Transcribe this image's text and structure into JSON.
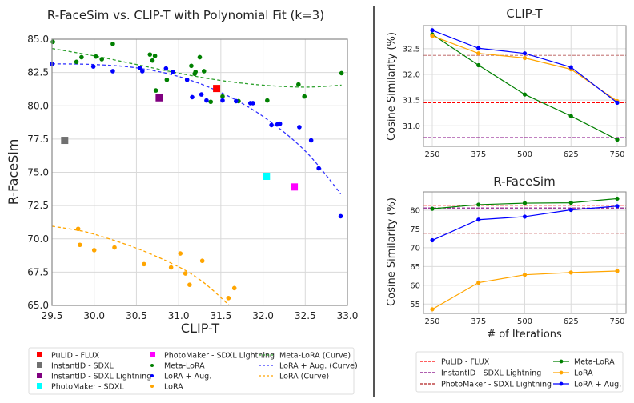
{
  "chart_data": [
    {
      "type": "scatter",
      "title": "R-FaceSim vs. CLIP-T with Polynomial Fit (k=3)",
      "xlabel": "CLIP-T",
      "ylabel": "R-FaceSim",
      "xlim": [
        29.5,
        33.0
      ],
      "ylim": [
        65.0,
        85.0
      ],
      "xticks": [
        "29.5",
        "30.0",
        "30.5",
        "31.0",
        "31.5",
        "32.0",
        "32.5",
        "33.0"
      ],
      "yticks": [
        "65.0",
        "67.5",
        "70.0",
        "72.5",
        "75.0",
        "77.5",
        "80.0",
        "82.5",
        "85.0"
      ],
      "grid": true,
      "legend_placement": "bottom",
      "baselines": [
        {
          "name": "PuLID - FLUX",
          "color": "#ff0000",
          "x": 31.45,
          "y": 81.3
        },
        {
          "name": "InstantID - SDXL",
          "color": "#707070",
          "x": 29.65,
          "y": 77.4
        },
        {
          "name": "InstantID - SDXL Lightning",
          "color": "#800080",
          "x": 30.77,
          "y": 80.6
        },
        {
          "name": "PhotoMaker - SDXL",
          "color": "#00ffff",
          "x": 32.04,
          "y": 74.7
        },
        {
          "name": "PhotoMaker - SDXL Lightning",
          "color": "#ff00ff",
          "x": 32.37,
          "y": 73.9
        }
      ],
      "series": [
        {
          "name": "Meta-LoRA",
          "color": "#008000",
          "points": [
            [
              29.51,
              84.8
            ],
            [
              29.79,
              83.3
            ],
            [
              29.85,
              83.65
            ],
            [
              30.02,
              83.7
            ],
            [
              30.09,
              83.5
            ],
            [
              30.22,
              84.65
            ],
            [
              30.66,
              83.85
            ],
            [
              30.69,
              83.4
            ],
            [
              30.72,
              83.75
            ],
            [
              30.73,
              81.15
            ],
            [
              30.86,
              81.95
            ],
            [
              31.15,
              83.0
            ],
            [
              31.2,
              82.55
            ],
            [
              31.25,
              83.65
            ],
            [
              31.38,
              80.3
            ],
            [
              31.52,
              80.7
            ],
            [
              31.71,
              80.35
            ],
            [
              32.05,
              80.4
            ],
            [
              32.42,
              81.6
            ],
            [
              32.49,
              80.7
            ],
            [
              32.93,
              82.45
            ],
            [
              31.3,
              82.6
            ],
            [
              31.19,
              82.4
            ]
          ]
        },
        {
          "name": "LoRA + Aug.",
          "color": "#0000ff",
          "points": [
            [
              29.5,
              83.15
            ],
            [
              29.99,
              82.95
            ],
            [
              30.22,
              82.6
            ],
            [
              30.54,
              82.85
            ],
            [
              30.57,
              82.6
            ],
            [
              30.85,
              82.8
            ],
            [
              30.93,
              82.55
            ],
            [
              31.1,
              81.95
            ],
            [
              31.16,
              80.65
            ],
            [
              31.27,
              80.85
            ],
            [
              31.33,
              80.4
            ],
            [
              31.45,
              81.35
            ],
            [
              31.68,
              80.35
            ],
            [
              31.85,
              80.2
            ],
            [
              31.88,
              80.2
            ],
            [
              32.1,
              78.55
            ],
            [
              32.17,
              78.6
            ],
            [
              32.2,
              78.65
            ],
            [
              32.43,
              78.4
            ],
            [
              32.57,
              77.4
            ],
            [
              32.66,
              75.3
            ],
            [
              32.92,
              71.7
            ],
            [
              31.52,
              80.4
            ]
          ]
        },
        {
          "name": "LoRA",
          "color": "#ffa500",
          "points": [
            [
              29.81,
              70.75
            ],
            [
              29.83,
              69.55
            ],
            [
              30.0,
              69.15
            ],
            [
              30.24,
              69.35
            ],
            [
              30.59,
              68.1
            ],
            [
              30.91,
              67.85
            ],
            [
              31.02,
              68.9
            ],
            [
              31.08,
              67.4
            ],
            [
              31.13,
              66.55
            ],
            [
              31.28,
              68.35
            ],
            [
              31.59,
              65.55
            ],
            [
              31.66,
              66.3
            ]
          ]
        }
      ],
      "curves": [
        {
          "name": "Meta-LoRA (Curve)",
          "color": "#2ca02c",
          "x_range": [
            29.5,
            32.93
          ],
          "samples": [
            [
              29.5,
              84.3
            ],
            [
              30.0,
              83.75
            ],
            [
              30.5,
              83.1
            ],
            [
              31.0,
              82.45
            ],
            [
              31.5,
              81.9
            ],
            [
              32.0,
              81.55
            ],
            [
              32.5,
              81.4
            ],
            [
              32.93,
              81.55
            ]
          ]
        },
        {
          "name": "LoRA + Aug. (Curve)",
          "color": "#3333ff",
          "x_range": [
            29.5,
            32.92
          ],
          "samples": [
            [
              29.5,
              83.15
            ],
            [
              30.0,
              83.1
            ],
            [
              30.5,
              82.85
            ],
            [
              31.0,
              82.2
            ],
            [
              31.5,
              81.0
            ],
            [
              32.0,
              79.2
            ],
            [
              32.5,
              76.6
            ],
            [
              32.92,
              73.4
            ]
          ]
        },
        {
          "name": "LoRA (Curve)",
          "color": "#ffa500",
          "x_range": [
            29.5,
            31.6
          ],
          "samples": [
            [
              29.5,
              70.95
            ],
            [
              29.8,
              70.65
            ],
            [
              30.0,
              70.35
            ],
            [
              30.5,
              69.3
            ],
            [
              31.0,
              67.9
            ],
            [
              31.3,
              66.7
            ],
            [
              31.6,
              65.0
            ]
          ]
        }
      ],
      "legend": [
        {
          "label": "PuLID - FLUX",
          "marker": "square",
          "color": "#ff0000"
        },
        {
          "label": "InstantID - SDXL",
          "marker": "square",
          "color": "#707070"
        },
        {
          "label": "InstantID - SDXL Lightning",
          "marker": "square",
          "color": "#800080"
        },
        {
          "label": "PhotoMaker - SDXL",
          "marker": "square",
          "color": "#00ffff"
        },
        {
          "label": "PhotoMaker - SDXL Lightning",
          "marker": "square",
          "color": "#ff00ff"
        },
        {
          "label": "Meta-LoRA",
          "marker": "dot",
          "color": "#008000"
        },
        {
          "label": "LoRA + Aug.",
          "marker": "dot",
          "color": "#0000ff"
        },
        {
          "label": "LoRA",
          "marker": "dot",
          "color": "#ffa500"
        },
        {
          "label": "Meta-LoRA (Curve)",
          "marker": "dash",
          "color": "#2ca02c"
        },
        {
          "label": "LoRA + Aug. (Curve)",
          "marker": "dash",
          "color": "#3333ff"
        },
        {
          "label": "LoRA (Curve)",
          "marker": "dash",
          "color": "#ffa500"
        }
      ]
    },
    {
      "type": "line",
      "title": "CLIP-T",
      "xlabel": "",
      "ylabel": "Cosine Similarity (%)",
      "categories": [
        "250",
        "375",
        "500",
        "625",
        "750"
      ],
      "ylim": [
        30.6,
        32.95
      ],
      "yticks": [
        "31.0",
        "31.5",
        "32.0",
        "32.5"
      ],
      "grid": true,
      "series": [
        {
          "name": "Meta-LoRA",
          "color": "#008000",
          "values": [
            32.78,
            32.18,
            31.61,
            31.19,
            30.73
          ]
        },
        {
          "name": "LoRA",
          "color": "#ffa500",
          "values": [
            32.75,
            32.41,
            32.32,
            32.1,
            31.48
          ]
        },
        {
          "name": "LoRA + Aug.",
          "color": "#0000ff",
          "values": [
            32.86,
            32.51,
            32.41,
            32.14,
            31.45
          ]
        }
      ],
      "reference_lines": [
        {
          "name": "PuLID - FLUX",
          "color": "#ff0000",
          "value": 31.45
        },
        {
          "name": "InstantID - SDXL Lightning",
          "color": "#800080",
          "value": 30.77
        },
        {
          "name": "PhotoMaker - SDXL Lightning",
          "color": "#cc8888",
          "value": 32.37
        }
      ]
    },
    {
      "type": "line",
      "title": "R-FaceSim",
      "xlabel": "# of Iterations",
      "ylabel": "Cosine Similarity (%)",
      "categories": [
        "250",
        "375",
        "500",
        "625",
        "750"
      ],
      "ylim": [
        52.5,
        84.9
      ],
      "yticks": [
        "55",
        "60",
        "65",
        "70",
        "75",
        "80"
      ],
      "grid": true,
      "series": [
        {
          "name": "Meta-LoRA",
          "color": "#008000",
          "values": [
            80.4,
            81.5,
            81.9,
            82.0,
            83.1
          ]
        },
        {
          "name": "LoRA",
          "color": "#ffa500",
          "values": [
            53.6,
            60.7,
            62.8,
            63.4,
            63.8
          ]
        },
        {
          "name": "LoRA + Aug.",
          "color": "#0000ff",
          "values": [
            72.0,
            77.5,
            78.3,
            80.1,
            81.1
          ]
        }
      ],
      "reference_lines": [
        {
          "name": "PuLID - FLUX",
          "color": "#ff6666",
          "value": 81.3
        },
        {
          "name": "InstantID - SDXL Lightning",
          "color": "#800080",
          "value": 80.6
        },
        {
          "name": "PhotoMaker - SDXL Lightning",
          "color": "#b22222",
          "value": 73.9
        }
      ],
      "legend": [
        {
          "label": "PuLID - FLUX",
          "marker": "dash",
          "color": "#ff0000"
        },
        {
          "label": "InstantID - SDXL Lightning",
          "marker": "dash",
          "color": "#800080"
        },
        {
          "label": "PhotoMaker - SDXL Lightning",
          "marker": "dash",
          "color": "#b22222"
        },
        {
          "label": "Meta-LoRA",
          "marker": "line-dot",
          "color": "#008000"
        },
        {
          "label": "LoRA",
          "marker": "line-dot",
          "color": "#ffa500"
        },
        {
          "label": "LoRA + Aug.",
          "marker": "line-dot",
          "color": "#0000ff"
        }
      ]
    }
  ]
}
